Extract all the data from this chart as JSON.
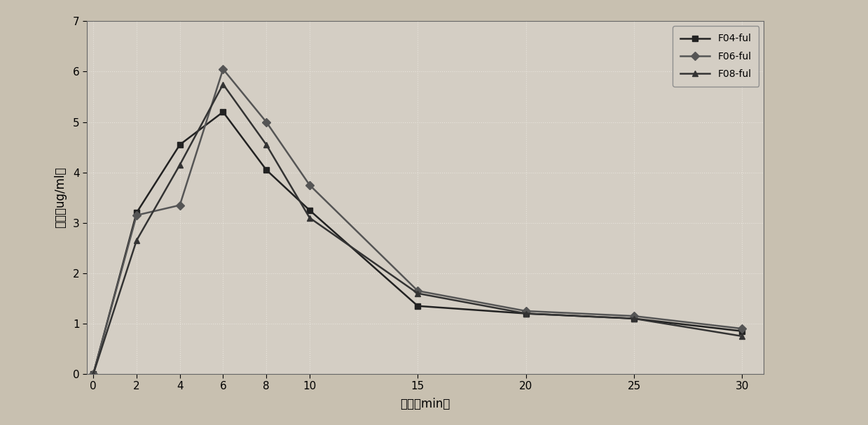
{
  "x": [
    0,
    2,
    4,
    6,
    8,
    10,
    15,
    20,
    25,
    30
  ],
  "series": [
    {
      "label": "F04-ful",
      "values": [
        0,
        3.2,
        4.55,
        5.2,
        4.05,
        3.25,
        1.35,
        1.2,
        1.1,
        0.85
      ],
      "color": "#222222",
      "marker": "s",
      "linestyle": "-"
    },
    {
      "label": "F06-ful",
      "values": [
        0,
        3.15,
        3.35,
        6.05,
        5.0,
        3.75,
        1.65,
        1.25,
        1.15,
        0.9
      ],
      "color": "#555555",
      "marker": "D",
      "linestyle": "-"
    },
    {
      "label": "F08-ful",
      "values": [
        0,
        2.65,
        4.15,
        5.75,
        4.55,
        3.1,
        1.6,
        1.2,
        1.1,
        0.75
      ],
      "color": "#333333",
      "marker": "^",
      "linestyle": "-"
    }
  ],
  "xlabel": "时间（min）",
  "ylabel": "浓度（ug/ml）",
  "xlim": [
    -0.3,
    31
  ],
  "ylim": [
    0,
    7
  ],
  "xticks": [
    0,
    2,
    4,
    6,
    8,
    10,
    15,
    20,
    25,
    30
  ],
  "yticks": [
    0,
    1,
    2,
    3,
    4,
    5,
    6,
    7
  ],
  "fig_bg_color": "#c8c0b0",
  "plot_bg_color": "#d4cec4",
  "grid_color": "#e8e4dc",
  "legend_loc": "upper right",
  "axis_fontsize": 12,
  "tick_fontsize": 11,
  "legend_fontsize": 10,
  "linewidth": 1.8,
  "markersize": 6
}
